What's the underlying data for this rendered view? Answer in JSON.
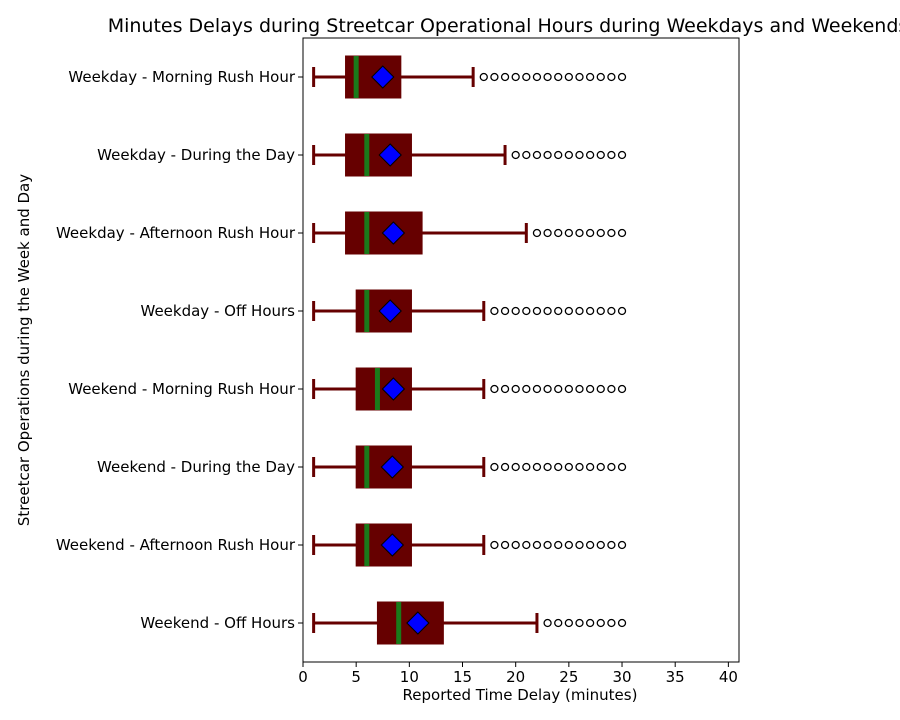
{
  "chart_data": {
    "type": "boxplot",
    "orientation": "horizontal",
    "title": "Minutes Delays during Streetcar Operational Hours during Weekdays and Weekends",
    "xlabel": "Reported Time Delay (minutes)",
    "ylabel": "Streetcar Operations during the Week and Day",
    "xlim": [
      0,
      41
    ],
    "xticks": [
      0,
      5,
      10,
      15,
      20,
      25,
      30,
      35,
      40
    ],
    "grid": false,
    "legend": "none",
    "colors": {
      "box_fill": "#660000",
      "whisker": "#660000",
      "median": "#1a7a1a",
      "mean_marker": "#0000ff",
      "flier_edge": "#000000"
    },
    "series": [
      {
        "category": "Weekday - Morning Rush Hour",
        "whisker_low": 1,
        "q1": 4,
        "median": 5,
        "q3": 9.2,
        "whisker_high": 16,
        "mean": 7.5,
        "fliers": [
          17,
          18,
          19,
          20,
          21,
          22,
          23,
          24,
          25,
          26,
          27,
          28,
          29,
          30
        ]
      },
      {
        "category": "Weekday - During the Day",
        "whisker_low": 1,
        "q1": 4,
        "median": 6,
        "q3": 10.2,
        "whisker_high": 19,
        "mean": 8.2,
        "fliers": [
          20,
          21,
          22,
          23,
          24,
          25,
          26,
          27,
          28,
          29,
          30
        ]
      },
      {
        "category": "Weekday - Afternoon Rush Hour",
        "whisker_low": 1,
        "q1": 4,
        "median": 6,
        "q3": 11.2,
        "whisker_high": 21,
        "mean": 8.5,
        "fliers": [
          22,
          23,
          24,
          25,
          26,
          27,
          28,
          29,
          30
        ]
      },
      {
        "category": "Weekday - Off Hours",
        "whisker_low": 1,
        "q1": 5,
        "median": 6,
        "q3": 10.2,
        "whisker_high": 17,
        "mean": 8.2,
        "fliers": [
          18,
          19,
          20,
          21,
          22,
          23,
          24,
          25,
          26,
          27,
          28,
          29,
          30
        ]
      },
      {
        "category": "Weekend - Morning Rush Hour",
        "whisker_low": 1,
        "q1": 5,
        "median": 7,
        "q3": 10.2,
        "whisker_high": 17,
        "mean": 8.5,
        "fliers": [
          18,
          19,
          20,
          21,
          22,
          23,
          24,
          25,
          26,
          27,
          28,
          29,
          30
        ]
      },
      {
        "category": "Weekend - During the Day",
        "whisker_low": 1,
        "q1": 5,
        "median": 6,
        "q3": 10.2,
        "whisker_high": 17,
        "mean": 8.4,
        "fliers": [
          18,
          19,
          20,
          21,
          22,
          23,
          24,
          25,
          26,
          27,
          28,
          29,
          30
        ]
      },
      {
        "category": "Weekend - Afternoon Rush Hour",
        "whisker_low": 1,
        "q1": 5,
        "median": 6,
        "q3": 10.2,
        "whisker_high": 17,
        "mean": 8.4,
        "fliers": [
          18,
          19,
          20,
          21,
          22,
          23,
          24,
          25,
          26,
          27,
          28,
          29,
          30
        ]
      },
      {
        "category": "Weekend - Off Hours",
        "whisker_low": 1,
        "q1": 7,
        "median": 9,
        "q3": 13.2,
        "whisker_high": 22,
        "mean": 10.8,
        "fliers": [
          23,
          24,
          25,
          26,
          27,
          28,
          29,
          30
        ]
      }
    ]
  }
}
